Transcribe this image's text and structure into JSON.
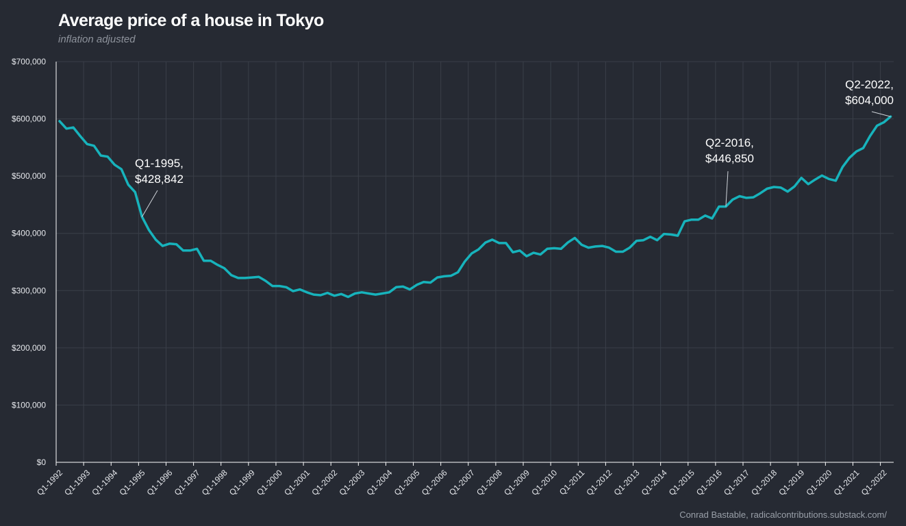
{
  "header": {
    "title": "Average price of a house in Tokyo",
    "subtitle": "inflation adjusted"
  },
  "footer": {
    "credit": "Conrad Bastable, radicalcontributions.substack.com/"
  },
  "colors": {
    "background": "#262a33",
    "line": "#17b3bc",
    "grid": "#3a3f49",
    "axis": "#ffffff"
  },
  "chart_data": {
    "type": "line",
    "title": "Average price of a house in Tokyo",
    "subtitle": "inflation adjusted",
    "xlabel": "",
    "ylabel": "",
    "ylim": [
      0,
      700000
    ],
    "grid": true,
    "x_tick_labels": [
      "Q1-1992",
      "Q1-1993",
      "Q1-1994",
      "Q1-1995",
      "Q1-1996",
      "Q1-1997",
      "Q1-1998",
      "Q1-1999",
      "Q1-2000",
      "Q1-2001",
      "Q1-2002",
      "Q1-2003",
      "Q1-2004",
      "Q1-2005",
      "Q1-2006",
      "Q1-2007",
      "Q1-2008",
      "Q1-2009",
      "Q1-2010",
      "Q1-2011",
      "Q1-2012",
      "Q1-2013",
      "Q1-2014",
      "Q1-2015",
      "Q1-2016",
      "Q1-2017",
      "Q1-2018",
      "Q1-2019",
      "Q1-2020",
      "Q1-2021",
      "Q1-2022"
    ],
    "y_tick_labels": [
      "$0",
      "$100,000",
      "$200,000",
      "$300,000",
      "$400,000",
      "$500,000",
      "$600,000",
      "$700,000"
    ],
    "y_ticks": [
      0,
      100000,
      200000,
      300000,
      400000,
      500000,
      600000,
      700000
    ],
    "series": [
      {
        "name": "",
        "x_start": "Q1-1992",
        "x_end": "Q2-2022",
        "values": [
          596000,
          583000,
          585000,
          570000,
          556000,
          553000,
          536000,
          534000,
          520000,
          512000,
          485000,
          472000,
          428842,
          406000,
          389000,
          378000,
          382000,
          381000,
          370000,
          370000,
          373000,
          352000,
          352000,
          345000,
          339000,
          327000,
          322000,
          322000,
          323000,
          324000,
          317000,
          308000,
          308000,
          306000,
          299000,
          302000,
          297000,
          293000,
          292000,
          296000,
          291000,
          294000,
          289000,
          295000,
          297000,
          295000,
          293000,
          295000,
          297000,
          306000,
          307000,
          302000,
          310000,
          315000,
          314000,
          323000,
          325000,
          326000,
          332000,
          351000,
          365000,
          372000,
          384000,
          389000,
          383000,
          383000,
          367000,
          370000,
          360000,
          366000,
          363000,
          373000,
          374000,
          373000,
          384000,
          392000,
          380000,
          375000,
          377000,
          378000,
          375000,
          368000,
          368000,
          375000,
          387000,
          388000,
          394000,
          388000,
          399000,
          398000,
          396000,
          421000,
          424000,
          424000,
          431000,
          426000,
          446850,
          446850,
          459000,
          465000,
          462000,
          463000,
          470000,
          478000,
          481000,
          480000,
          473000,
          482000,
          497000,
          486000,
          494000,
          501000,
          495000,
          492000,
          516000,
          532000,
          543000,
          549000,
          570000,
          588000,
          594000,
          604000
        ]
      }
    ],
    "annotations": [
      {
        "label_line1": "Q1-1995,",
        "label_line2": "$428,842",
        "x": "Q1-1995",
        "y": 428842
      },
      {
        "label_line1": "Q2-2016,",
        "label_line2": "$446,850",
        "x": "Q2-2016",
        "y": 446850
      },
      {
        "label_line1": "Q2-2022,",
        "label_line2": "$604,000",
        "x": "Q2-2022",
        "y": 604000
      }
    ]
  }
}
